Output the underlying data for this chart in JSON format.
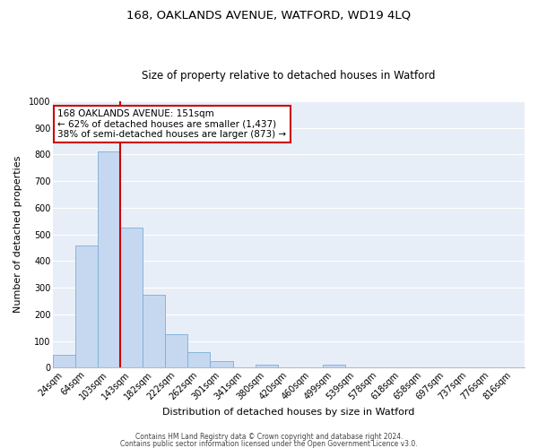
{
  "title": "168, OAKLANDS AVENUE, WATFORD, WD19 4LQ",
  "subtitle": "Size of property relative to detached houses in Watford",
  "xlabel": "Distribution of detached houses by size in Watford",
  "ylabel": "Number of detached properties",
  "bar_color": "#c5d8f0",
  "bar_edge_color": "#7aaed6",
  "bg_color": "#e8eef8",
  "grid_color": "#ffffff",
  "fig_bg_color": "#ffffff",
  "categories": [
    "24sqm",
    "64sqm",
    "103sqm",
    "143sqm",
    "182sqm",
    "222sqm",
    "262sqm",
    "301sqm",
    "341sqm",
    "380sqm",
    "420sqm",
    "460sqm",
    "499sqm",
    "539sqm",
    "578sqm",
    "618sqm",
    "658sqm",
    "697sqm",
    "737sqm",
    "776sqm",
    "816sqm"
  ],
  "values": [
    47,
    459,
    810,
    525,
    272,
    125,
    57,
    25,
    0,
    12,
    0,
    0,
    10,
    0,
    0,
    0,
    0,
    0,
    0,
    0,
    0
  ],
  "ylim": [
    0,
    1000
  ],
  "yticks": [
    0,
    100,
    200,
    300,
    400,
    500,
    600,
    700,
    800,
    900,
    1000
  ],
  "property_line_color": "#cc0000",
  "annotation_text": "168 OAKLANDS AVENUE: 151sqm\n← 62% of detached houses are smaller (1,437)\n38% of semi-detached houses are larger (873) →",
  "annotation_box_color": "#cc0000",
  "footer_line1": "Contains HM Land Registry data © Crown copyright and database right 2024.",
  "footer_line2": "Contains public sector information licensed under the Open Government Licence v3.0.",
  "title_fontsize": 9.5,
  "subtitle_fontsize": 8.5,
  "axis_label_fontsize": 8,
  "tick_fontsize": 7,
  "annotation_fontsize": 7.5,
  "footer_fontsize": 5.5
}
